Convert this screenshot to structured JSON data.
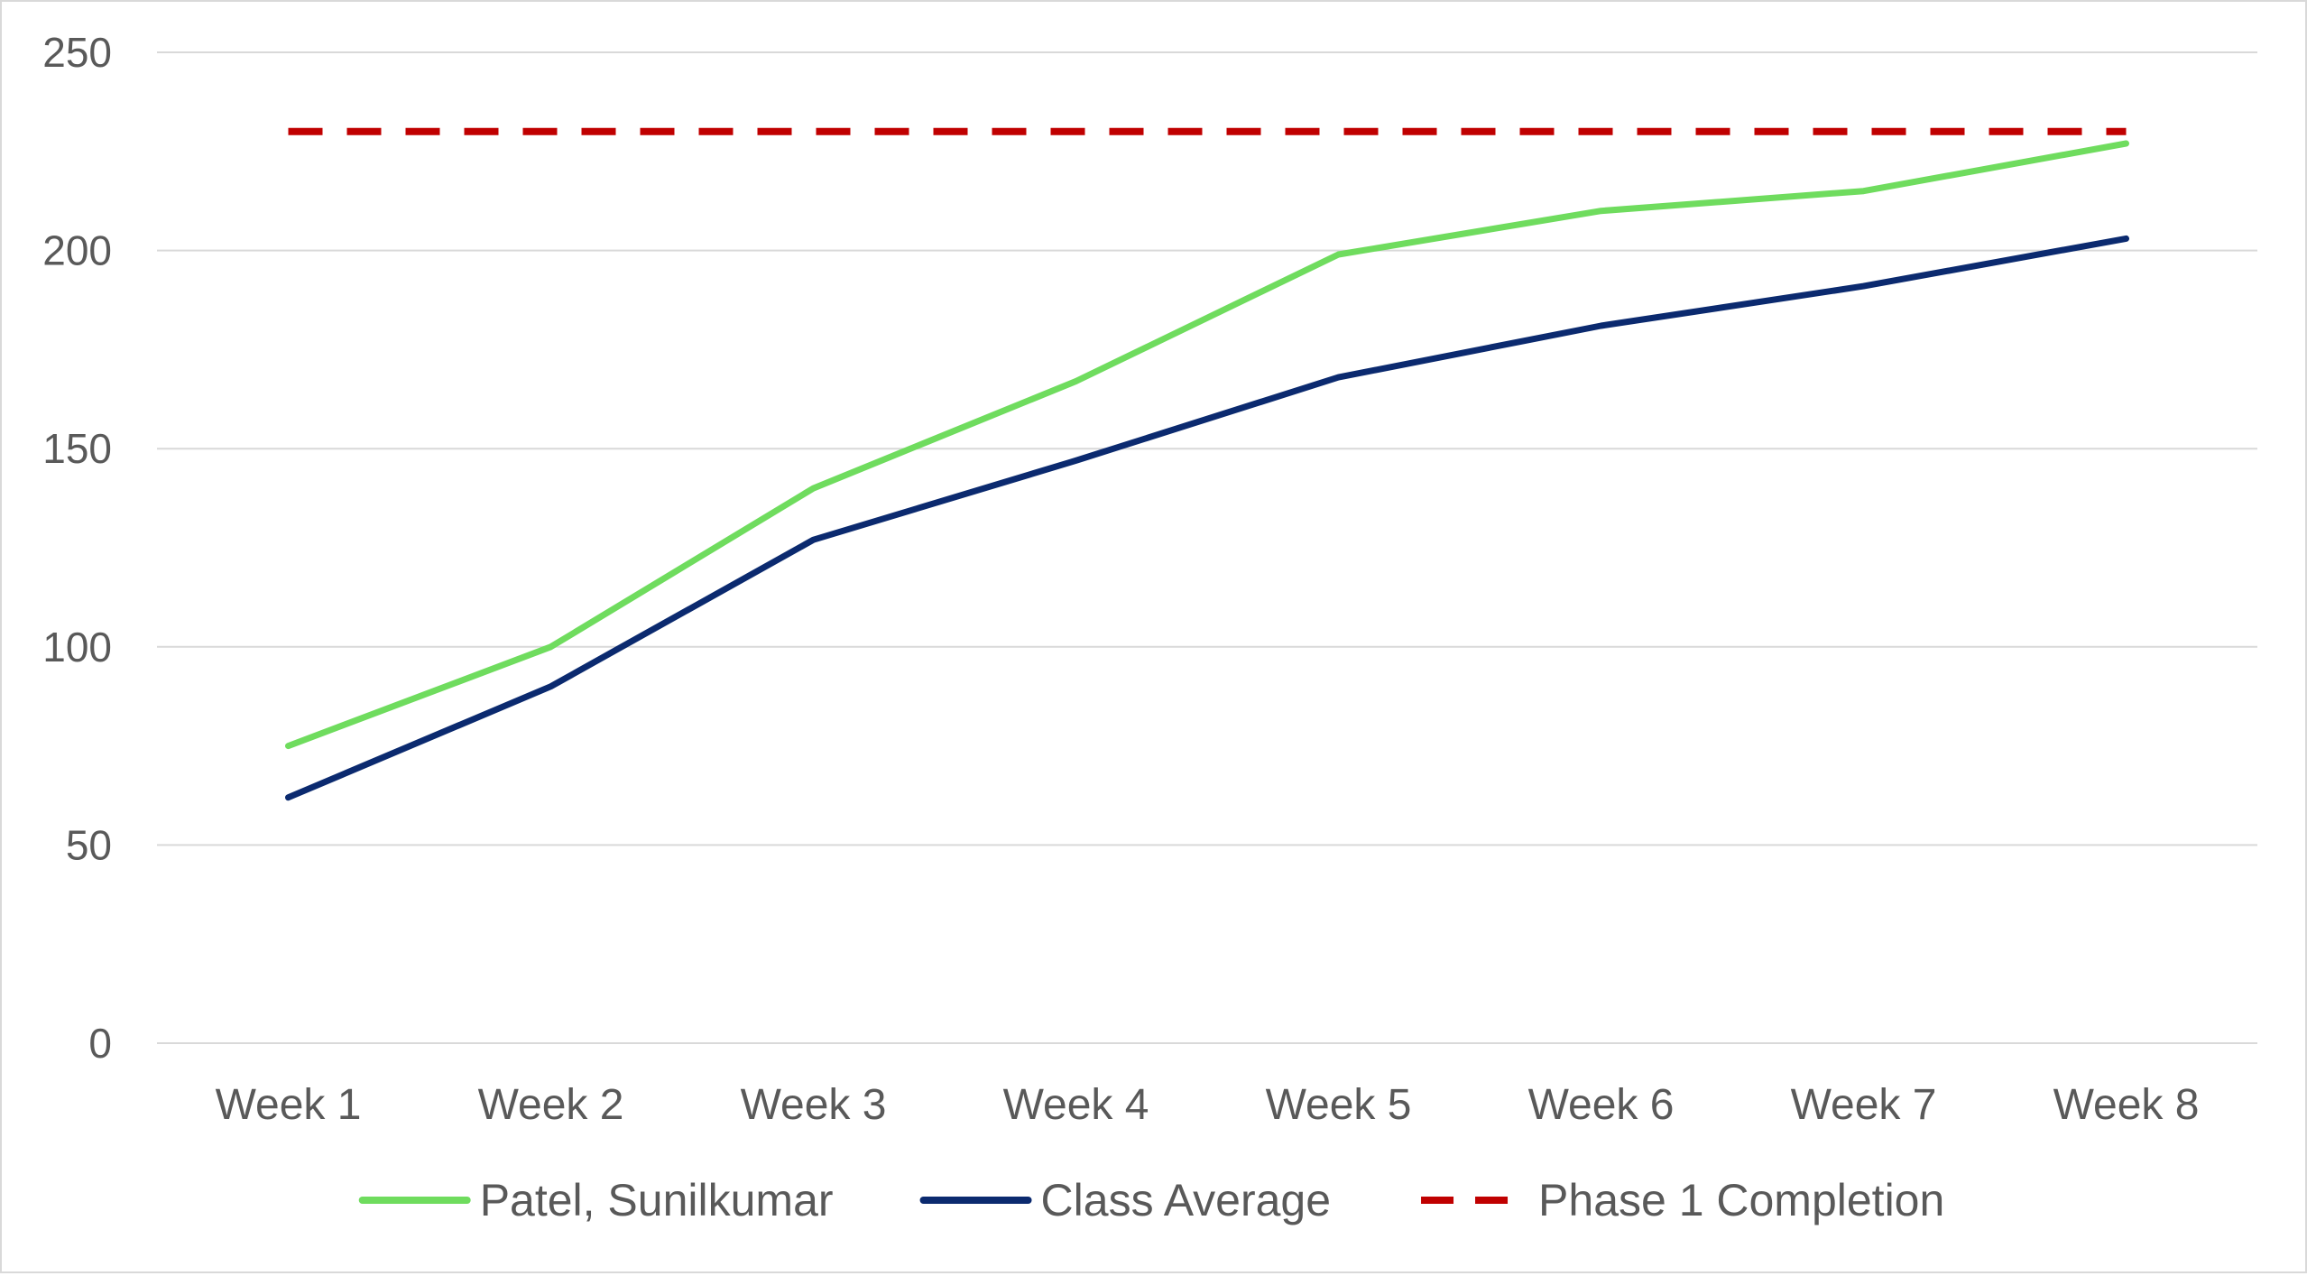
{
  "chart_data": {
    "type": "line",
    "title": "",
    "xlabel": "",
    "ylabel": "",
    "categories": [
      "Week 1",
      "Week 2",
      "Week 3",
      "Week 4",
      "Week 5",
      "Week 6",
      "Week 7",
      "Week 8"
    ],
    "ylim": [
      0,
      250
    ],
    "yticks": [
      0,
      50,
      100,
      150,
      200,
      250
    ],
    "ytick_labels": [
      "0",
      "50",
      "100",
      "150",
      "200",
      "250"
    ],
    "grid": true,
    "legend_position": "bottom",
    "series": [
      {
        "name": "Patel, Sunilkumar",
        "color": "#6fdc5e",
        "dash": "solid",
        "values": [
          75,
          100,
          140,
          167,
          199,
          210,
          215,
          227
        ]
      },
      {
        "name": "Class Average",
        "color": "#0b2a6f",
        "dash": "solid",
        "values": [
          62,
          90,
          127,
          147,
          168,
          181,
          191,
          203
        ]
      },
      {
        "name": "Phase 1 Completion",
        "color": "#c00000",
        "dash": "dashed",
        "values": [
          230,
          230,
          230,
          230,
          230,
          230,
          230,
          230
        ]
      }
    ]
  }
}
